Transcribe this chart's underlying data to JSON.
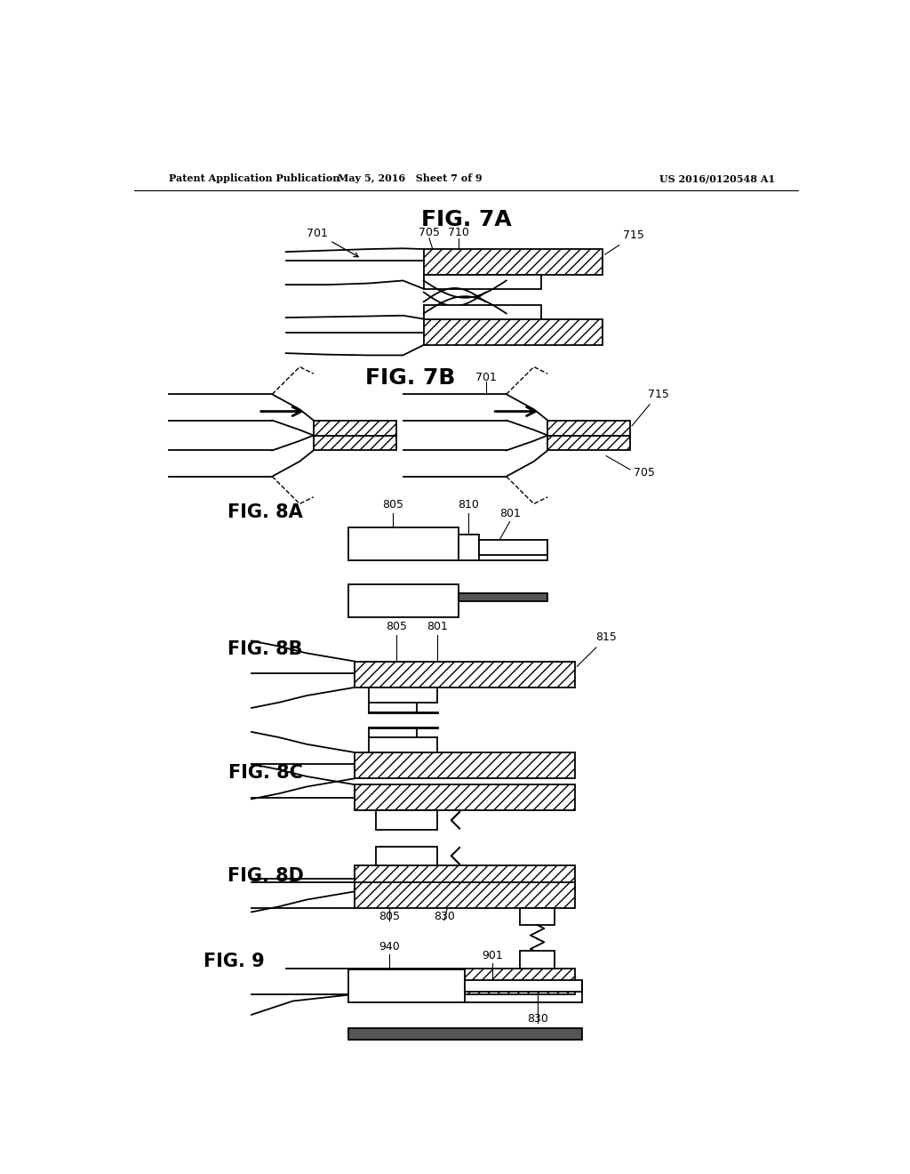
{
  "bg_color": "#ffffff",
  "header_left": "Patent Application Publication",
  "header_mid": "May 5, 2016   Sheet 7 of 9",
  "header_right": "US 2016/0120548 A1"
}
